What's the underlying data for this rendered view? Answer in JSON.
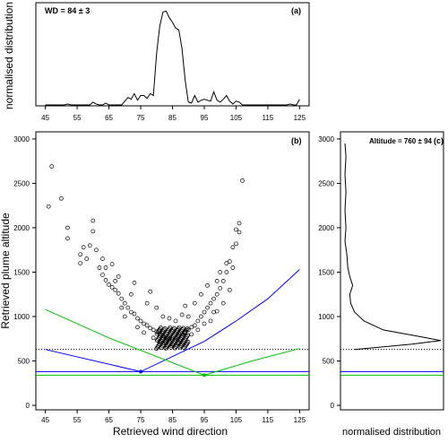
{
  "chart_data": [
    {
      "panel": "(a)",
      "type": "line",
      "annotation": "WD = 84 ± 3",
      "xlabel": "",
      "ylabel": "normalised distribution",
      "xlim": [
        42,
        128
      ],
      "ylim": [
        0,
        1
      ],
      "xticks": [
        45,
        55,
        65,
        75,
        85,
        95,
        105,
        115,
        125
      ],
      "x": [
        45,
        46,
        47,
        48,
        49,
        50,
        51,
        52,
        53,
        54,
        55,
        56,
        57,
        58,
        59,
        60,
        61,
        62,
        63,
        64,
        65,
        66,
        67,
        68,
        69,
        70,
        71,
        72,
        73,
        74,
        75,
        76,
        77,
        78,
        79,
        80,
        81,
        82,
        83,
        84,
        85,
        86,
        87,
        88,
        89,
        90,
        91,
        92,
        93,
        94,
        95,
        96,
        97,
        98,
        99,
        100,
        101,
        102,
        103,
        104,
        105,
        106,
        107,
        108,
        109,
        110,
        111,
        112,
        113,
        114,
        115,
        116,
        117,
        118,
        119,
        120,
        121,
        122,
        123,
        124,
        125
      ],
      "y": [
        0,
        0,
        0,
        0,
        0,
        0,
        0,
        0.01,
        0,
        0,
        0,
        0,
        0,
        0,
        0,
        0.03,
        0.01,
        0,
        0,
        0.02,
        0,
        0,
        0,
        0,
        0,
        0.04,
        0.08,
        0.06,
        0.12,
        0.05,
        0.1,
        0.1,
        0.07,
        0.12,
        0.1,
        0.55,
        0.84,
        0.99,
        1.0,
        0.93,
        0.88,
        0.82,
        0.8,
        0.6,
        0.26,
        0.03,
        0.02,
        0.1,
        0.03,
        0.05,
        0.06,
        0.05,
        0.04,
        0.14,
        0.05,
        0.03,
        0.06,
        0.1,
        0.04,
        0.01,
        0.04,
        0.03,
        0,
        0,
        0,
        0,
        0,
        0,
        0,
        0,
        0,
        0,
        0,
        0,
        0,
        0,
        0,
        0.01,
        0,
        0,
        0.06
      ]
    },
    {
      "panel": "(b)",
      "type": "scatter",
      "xlabel": "Retrieved wind direction",
      "ylabel": "Retrieved plume altitude",
      "xlim": [
        42,
        128
      ],
      "ylim": [
        -50,
        3080
      ],
      "xticks": [
        45,
        55,
        65,
        75,
        85,
        95,
        105,
        115,
        125
      ],
      "yticks": [
        0,
        500,
        1000,
        1500,
        2000,
        2500,
        3000
      ],
      "points": [
        [
          47,
          2690
        ],
        [
          46,
          2240
        ],
        [
          50,
          2330
        ],
        [
          52,
          2000
        ],
        [
          52,
          1880
        ],
        [
          56,
          1700
        ],
        [
          57,
          1780
        ],
        [
          58,
          1650
        ],
        [
          60,
          2080
        ],
        [
          60,
          1960
        ],
        [
          61,
          1750
        ],
        [
          62,
          1550
        ],
        [
          63,
          1470
        ],
        [
          64,
          1410
        ],
        [
          65,
          1360
        ],
        [
          66,
          1330
        ],
        [
          67,
          1300
        ],
        [
          68,
          1260
        ],
        [
          69,
          1200
        ],
        [
          70,
          1150
        ],
        [
          71,
          1100
        ],
        [
          72,
          1050
        ],
        [
          73,
          1030
        ],
        [
          74,
          980
        ],
        [
          75,
          950
        ],
        [
          76,
          920
        ],
        [
          77,
          900
        ],
        [
          78,
          870
        ],
        [
          79,
          850
        ],
        [
          80,
          830
        ],
        [
          81,
          800
        ],
        [
          82,
          780
        ],
        [
          83,
          760
        ],
        [
          84,
          750
        ],
        [
          85,
          740
        ],
        [
          86,
          760
        ],
        [
          87,
          780
        ],
        [
          88,
          800
        ],
        [
          89,
          820
        ],
        [
          90,
          850
        ],
        [
          91,
          880
        ],
        [
          92,
          900
        ],
        [
          93,
          950
        ],
        [
          94,
          1000
        ],
        [
          95,
          1050
        ],
        [
          96,
          1100
        ],
        [
          97,
          1150
        ],
        [
          98,
          1200
        ],
        [
          99,
          1250
        ],
        [
          100,
          1320
        ],
        [
          101,
          1400
        ],
        [
          102,
          1500
        ],
        [
          103,
          1620
        ],
        [
          104,
          1780
        ],
        [
          105,
          1980
        ],
        [
          106,
          2050
        ],
        [
          107,
          2530
        ],
        [
          66,
          1590
        ],
        [
          68,
          1450
        ],
        [
          72,
          1250
        ],
        [
          73,
          1380
        ],
        [
          77,
          1150
        ],
        [
          78,
          1280
        ],
        [
          80,
          1100
        ],
        [
          82,
          1000
        ],
        [
          84,
          980
        ],
        [
          86,
          950
        ],
        [
          88,
          1020
        ],
        [
          89,
          1120
        ],
        [
          90,
          1000
        ],
        [
          92,
          1150
        ],
        [
          94,
          1250
        ],
        [
          96,
          1350
        ],
        [
          99,
          1400
        ],
        [
          100,
          1500
        ],
        [
          103,
          1300
        ],
        [
          101,
          1150
        ],
        [
          104,
          1550
        ],
        [
          98,
          1050
        ],
        [
          95,
          920
        ],
        [
          93,
          850
        ],
        [
          91,
          800
        ],
        [
          87,
          700
        ],
        [
          85,
          690
        ],
        [
          83,
          700
        ],
        [
          81,
          720
        ],
        [
          79,
          760
        ],
        [
          76,
          820
        ],
        [
          74,
          880
        ],
        [
          70,
          1000
        ],
        [
          69,
          1100
        ],
        [
          67,
          1400
        ],
        [
          64,
          1550
        ],
        [
          63,
          1650
        ],
        [
          59,
          1800
        ],
        [
          56,
          1600
        ],
        [
          105,
          1820
        ],
        [
          106,
          1950
        ],
        [
          102,
          1600
        ],
        [
          97,
          950
        ],
        [
          99,
          1060
        ]
      ],
      "model_curves": [
        {
          "color": "#0000ff",
          "min_x": 75,
          "min_y": 380,
          "values": [
            [
              45,
              630
            ],
            [
              75,
              380
            ],
            [
              95,
              720
            ],
            [
              105,
              950
            ],
            [
              115,
              1200
            ],
            [
              125,
              1530
            ]
          ]
        },
        {
          "color": "#00c000",
          "min_x": 95,
          "min_y": 340,
          "values": [
            [
              45,
              1080
            ],
            [
              65,
              760
            ],
            [
              95,
              340
            ],
            [
              110,
              500
            ],
            [
              125,
              640
            ]
          ]
        }
      ],
      "reference_lines": [
        {
          "y": 630,
          "style": "dotted",
          "color": "#000000"
        },
        {
          "y": 380,
          "style": "solid",
          "color": "#0000ff"
        },
        {
          "y": 340,
          "style": "solid",
          "color": "#00c000"
        }
      ]
    },
    {
      "panel": "(c)",
      "type": "line",
      "annotation": "Altitude = 760 ± 94",
      "xlabel": "normalised distribution",
      "ylabel": "",
      "yticks": [
        0,
        500,
        1000,
        1500,
        2000,
        2500,
        3000
      ],
      "ylim": [
        -50,
        3080
      ],
      "xlim": [
        0,
        1
      ],
      "profile": [
        [
          0.0,
          2950
        ],
        [
          0.01,
          2800
        ],
        [
          0.0,
          2600
        ],
        [
          0.01,
          2400
        ],
        [
          0.0,
          2200
        ],
        [
          0.01,
          2000
        ],
        [
          0.0,
          1850
        ],
        [
          0.02,
          1700
        ],
        [
          0.03,
          1550
        ],
        [
          0.05,
          1450
        ],
        [
          0.08,
          1350
        ],
        [
          0.05,
          1250
        ],
        [
          0.06,
          1150
        ],
        [
          0.1,
          1050
        ],
        [
          0.2,
          950
        ],
        [
          0.4,
          850
        ],
        [
          0.75,
          780
        ],
        [
          1.0,
          730
        ],
        [
          0.7,
          690
        ],
        [
          0.3,
          650
        ],
        [
          0.1,
          630
        ]
      ]
    }
  ]
}
